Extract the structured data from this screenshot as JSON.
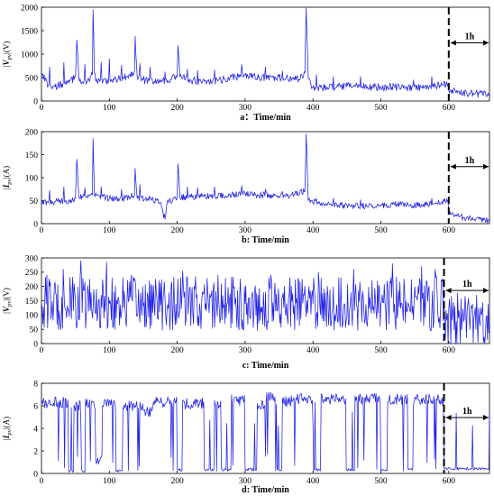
{
  "chart_data": [
    {
      "type": "line",
      "ylabel_sym": "V",
      "ylabel_sub": "pv",
      "ylabel_unit": "(V)",
      "xlabel": "a：Time/min",
      "xlim": [
        0,
        660
      ],
      "ylim": [
        0,
        2000
      ],
      "yticks": [
        "0",
        "500",
        "1000",
        "1500",
        "2000"
      ],
      "xticks": [
        "0",
        "100",
        "200",
        "300",
        "400",
        "500",
        "600"
      ],
      "marker_x": 600,
      "annotation": "1h",
      "series": [
        {
          "color": "#1f1fe8",
          "anchors": [
            [
              0,
              620
            ],
            [
              10,
              340
            ],
            [
              20,
              300
            ],
            [
              30,
              360
            ],
            [
              40,
              380
            ],
            [
              50,
              520
            ],
            [
              52,
              1300
            ],
            [
              55,
              500
            ],
            [
              60,
              410
            ],
            [
              70,
              450
            ],
            [
              75,
              560
            ],
            [
              76,
              1950
            ],
            [
              78,
              600
            ],
            [
              80,
              420
            ],
            [
              95,
              430
            ],
            [
              110,
              460
            ],
            [
              125,
              520
            ],
            [
              137,
              620
            ],
            [
              138,
              1380
            ],
            [
              141,
              520
            ],
            [
              150,
              450
            ],
            [
              170,
              420
            ],
            [
              190,
              460
            ],
            [
              200,
              560
            ],
            [
              201,
              1180
            ],
            [
              204,
              520
            ],
            [
              220,
              440
            ],
            [
              240,
              420
            ],
            [
              260,
              430
            ],
            [
              270,
              470
            ],
            [
              280,
              520
            ],
            [
              290,
              520
            ],
            [
              300,
              560
            ],
            [
              320,
              500
            ],
            [
              340,
              500
            ],
            [
              360,
              480
            ],
            [
              380,
              460
            ],
            [
              388,
              600
            ],
            [
              390,
              1980
            ],
            [
              393,
              480
            ],
            [
              400,
              280
            ],
            [
              420,
              280
            ],
            [
              440,
              300
            ],
            [
              460,
              330
            ],
            [
              480,
              300
            ],
            [
              500,
              300
            ],
            [
              520,
              300
            ],
            [
              540,
              280
            ],
            [
              560,
              300
            ],
            [
              580,
              320
            ],
            [
              599,
              360
            ],
            [
              600,
              220
            ],
            [
              610,
              200
            ],
            [
              630,
              170
            ],
            [
              650,
              150
            ],
            [
              660,
              140
            ]
          ],
          "noise": 80,
          "spikes": [
            [
              12,
              720
            ],
            [
              33,
              820
            ],
            [
              64,
              780
            ],
            [
              88,
              830
            ],
            [
              100,
              900
            ],
            [
              118,
              760
            ],
            [
              145,
              800
            ],
            [
              160,
              720
            ],
            [
              182,
              620
            ],
            [
              215,
              680
            ],
            [
              230,
              650
            ],
            [
              255,
              660
            ],
            [
              295,
              780
            ],
            [
              330,
              720
            ],
            [
              355,
              640
            ],
            [
              405,
              560
            ],
            [
              430,
              520
            ],
            [
              470,
              520
            ],
            [
              520,
              560
            ],
            [
              548,
              450
            ],
            [
              575,
              520
            ]
          ]
        }
      ]
    },
    {
      "type": "line",
      "ylabel_sym": "I",
      "ylabel_sub": "pv",
      "ylabel_unit": "(A)",
      "xlabel": "b: Time/min",
      "xlim": [
        0,
        660
      ],
      "ylim": [
        0,
        200
      ],
      "yticks": [
        "0",
        "50",
        "100",
        "150",
        "200"
      ],
      "xticks": [
        "0",
        "100",
        "200",
        "300",
        "400",
        "500",
        "600"
      ],
      "marker_x": 600,
      "annotation": "1h",
      "series": [
        {
          "color": "#1f1fe8",
          "anchors": [
            [
              0,
              45
            ],
            [
              20,
              48
            ],
            [
              40,
              50
            ],
            [
              50,
              55
            ],
            [
              52,
              140
            ],
            [
              55,
              60
            ],
            [
              70,
              60
            ],
            [
              75,
              62
            ],
            [
              76,
              185
            ],
            [
              78,
              62
            ],
            [
              100,
              55
            ],
            [
              120,
              55
            ],
            [
              137,
              62
            ],
            [
              138,
              120
            ],
            [
              141,
              55
            ],
            [
              160,
              55
            ],
            [
              175,
              45
            ],
            [
              182,
              10
            ],
            [
              185,
              45
            ],
            [
              200,
              58
            ],
            [
              201,
              130
            ],
            [
              204,
              58
            ],
            [
              220,
              58
            ],
            [
              240,
              60
            ],
            [
              260,
              60
            ],
            [
              280,
              62
            ],
            [
              300,
              65
            ],
            [
              320,
              62
            ],
            [
              340,
              62
            ],
            [
              360,
              60
            ],
            [
              388,
              70
            ],
            [
              390,
              195
            ],
            [
              393,
              50
            ],
            [
              420,
              42
            ],
            [
              450,
              40
            ],
            [
              480,
              38
            ],
            [
              500,
              40
            ],
            [
              520,
              42
            ],
            [
              540,
              40
            ],
            [
              560,
              42
            ],
            [
              580,
              45
            ],
            [
              599,
              50
            ],
            [
              600,
              20
            ],
            [
              615,
              15
            ],
            [
              630,
              12
            ],
            [
              645,
              10
            ],
            [
              660,
              8
            ]
          ],
          "noise": 7,
          "spikes": [
            [
              12,
              72
            ],
            [
              33,
              80
            ],
            [
              64,
              78
            ],
            [
              88,
              80
            ],
            [
              100,
              90
            ],
            [
              118,
              75
            ],
            [
              145,
              85
            ],
            [
              160,
              75
            ],
            [
              215,
              80
            ],
            [
              230,
              78
            ],
            [
              255,
              80
            ],
            [
              295,
              82
            ],
            [
              330,
              75
            ],
            [
              355,
              70
            ],
            [
              405,
              55
            ],
            [
              430,
              55
            ],
            [
              470,
              52
            ],
            [
              520,
              55
            ],
            [
              575,
              55
            ]
          ]
        }
      ]
    },
    {
      "type": "line",
      "ylabel_sym": "V",
      "ylabel_sub": "pv",
      "ylabel_unit": "(V)",
      "xlabel": "c: Time/min",
      "xlim": [
        0,
        660
      ],
      "ylim": [
        0,
        300
      ],
      "yticks": [
        "0",
        "50",
        "100",
        "150",
        "200",
        "250",
        "300"
      ],
      "xticks": [
        "0",
        "100",
        "200",
        "300",
        "400",
        "500",
        "600"
      ],
      "marker_x": 593,
      "annotation": "1h",
      "series": [
        {
          "color": "#1f1fe8",
          "anchors": [
            [
              0,
              140
            ],
            [
              100,
              140
            ],
            [
              200,
              140
            ],
            [
              300,
              140
            ],
            [
              400,
              140
            ],
            [
              500,
              140
            ],
            [
              593,
              140
            ],
            [
              594,
              80
            ],
            [
              620,
              90
            ],
            [
              660,
              70
            ]
          ],
          "noise": 95,
          "spikes": [
            [
              8,
              240
            ],
            [
              32,
              260
            ],
            [
              58,
              290
            ],
            [
              96,
              285
            ],
            [
              132,
              240
            ],
            [
              208,
              255
            ],
            [
              260,
              240
            ],
            [
              300,
              20
            ],
            [
              338,
              240
            ],
            [
              408,
              250
            ],
            [
              460,
              260
            ],
            [
              517,
              280
            ],
            [
              560,
              270
            ],
            [
              580,
              260
            ]
          ]
        }
      ]
    },
    {
      "type": "line",
      "ylabel_sym": "I",
      "ylabel_sub": "pv",
      "ylabel_unit": "(A)",
      "xlabel": "d: Time/min",
      "xlim": [
        0,
        660
      ],
      "ylim": [
        0,
        8
      ],
      "yticks": [
        "0",
        "2",
        "4",
        "6",
        "8"
      ],
      "xticks": [
        "0",
        "100",
        "200",
        "300",
        "400",
        "500",
        "600"
      ],
      "marker_x": 593,
      "annotation": "1h",
      "series": [
        {
          "color": "#1f1fe8",
          "segments": [
            [
              0,
              40,
              6.3
            ],
            [
              40,
              48,
              0.1
            ],
            [
              48,
              58,
              6.0
            ],
            [
              58,
              65,
              0.1
            ],
            [
              65,
              80,
              6.2
            ],
            [
              80,
              90,
              1.2
            ],
            [
              90,
              110,
              6.4
            ],
            [
              110,
              120,
              0.1
            ],
            [
              120,
              150,
              6.0
            ],
            [
              150,
              165,
              5.5
            ],
            [
              165,
              200,
              6.3
            ],
            [
              200,
              208,
              0.2
            ],
            [
              208,
              240,
              6.2
            ],
            [
              240,
              255,
              0.2
            ],
            [
              255,
              265,
              6.0
            ],
            [
              265,
              280,
              0.2
            ],
            [
              280,
              300,
              6.5
            ],
            [
              300,
              318,
              0.2
            ],
            [
              318,
              330,
              6.2
            ],
            [
              330,
              345,
              6.8
            ],
            [
              345,
              355,
              0.2
            ],
            [
              355,
              375,
              6.4
            ],
            [
              375,
              400,
              6.6
            ],
            [
              400,
              412,
              0.2
            ],
            [
              412,
              450,
              6.6
            ],
            [
              450,
              462,
              0.2
            ],
            [
              462,
              500,
              6.6
            ],
            [
              500,
              510,
              0.2
            ],
            [
              510,
              540,
              6.6
            ],
            [
              540,
              548,
              0.2
            ],
            [
              548,
              580,
              6.6
            ],
            [
              580,
              593,
              6.5
            ],
            [
              593,
              660,
              0.3
            ]
          ],
          "noise": 0.5
        }
      ]
    }
  ]
}
